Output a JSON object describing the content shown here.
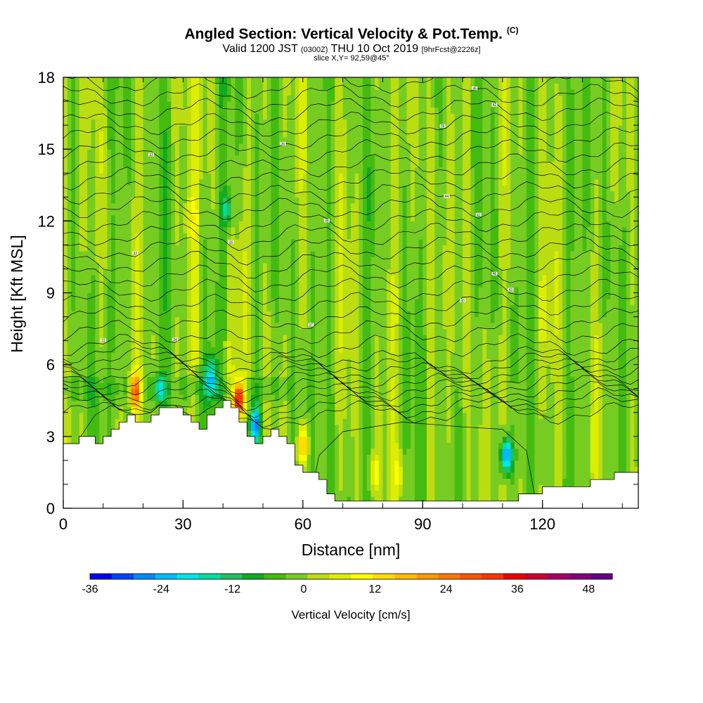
{
  "chart_data": {
    "type": "heatmap",
    "title": "Angled Section: Vertical Velocity & Pot.Temp.",
    "title_mark": "(C)",
    "subtitle_prefix": "Valid 1200 JST",
    "subtitle_utc": "(0300Z)",
    "subtitle_date": "THU 10 Oct 2019",
    "subtitle_run": "[9hrFcst@2226z]",
    "slice_label": "slice X,Y= 92,59@45°",
    "xlabel": "Distance [nm]",
    "ylabel": "Height [Kft MSL]",
    "xlim": [
      0,
      144
    ],
    "ylim": [
      0,
      18
    ],
    "x_ticks": [
      0,
      30,
      60,
      90,
      120
    ],
    "y_ticks": [
      0,
      3,
      6,
      9,
      12,
      15,
      18
    ],
    "colorbar": {
      "label": "Vertical Velocity [cm/s]",
      "min": -36,
      "max": 52,
      "step": 4,
      "tick_values": [
        -36,
        -24,
        -12,
        0,
        12,
        24,
        36,
        48
      ],
      "colors": [
        "#0000ff",
        "#0044ff",
        "#0088ff",
        "#00bbff",
        "#00e6e6",
        "#00dda0",
        "#22c060",
        "#11aa22",
        "#44bb11",
        "#77cc22",
        "#bbdd11",
        "#ddee00",
        "#ffff00",
        "#ffdd00",
        "#ffbb00",
        "#ff9900",
        "#ff7700",
        "#ff5500",
        "#ff3300",
        "#ee0000",
        "#cc0033",
        "#aa0066",
        "#880077",
        "#660088"
      ]
    },
    "terrain_top_kft": [
      [
        0,
        2.7
      ],
      [
        5,
        3.0
      ],
      [
        8,
        2.6
      ],
      [
        12,
        3.2
      ],
      [
        14,
        3.6
      ],
      [
        16,
        4.0
      ],
      [
        18,
        3.6
      ],
      [
        20,
        3.5
      ],
      [
        22,
        4.0
      ],
      [
        24,
        4.3
      ],
      [
        28,
        4.3
      ],
      [
        31,
        3.9
      ],
      [
        34,
        3.4
      ],
      [
        37,
        4.1
      ],
      [
        40,
        4.6
      ],
      [
        42,
        4.1
      ],
      [
        44,
        3.6
      ],
      [
        46,
        3.0
      ],
      [
        48,
        2.8
      ],
      [
        50,
        2.9
      ],
      [
        52,
        3.3
      ],
      [
        55,
        3.0
      ],
      [
        58,
        1.7
      ],
      [
        63,
        1.3
      ],
      [
        65,
        0.8
      ],
      [
        67,
        0.4
      ],
      [
        80,
        0.35
      ],
      [
        100,
        0.35
      ],
      [
        113,
        0.35
      ],
      [
        116,
        0.7
      ],
      [
        128,
        0.9
      ],
      [
        138,
        1.4
      ],
      [
        144,
        1.4
      ]
    ],
    "vertical_velocity_features": [
      {
        "x": 18,
        "y": 4.9,
        "value": 36
      },
      {
        "x": 44,
        "y": 4.6,
        "value": 44
      },
      {
        "x": 48,
        "y": 3.5,
        "value": -26
      },
      {
        "x": 37,
        "y": 5.5,
        "value": -20
      },
      {
        "x": 111,
        "y": 2.2,
        "value": -30
      },
      {
        "x": 60,
        "y": 2.6,
        "value": 20
      },
      {
        "x": 78,
        "y": 1.5,
        "value": 12
      },
      {
        "x": 84,
        "y": 1.5,
        "value": 10
      },
      {
        "x": 24,
        "y": 5.0,
        "value": -14
      },
      {
        "x": 32,
        "y": 12.0,
        "value": 8
      },
      {
        "x": 41,
        "y": 12.5,
        "value": -12
      }
    ],
    "isentropes": {
      "count": 30,
      "labels": [
        "31",
        "32",
        "33",
        "34",
        "35",
        "36",
        "37",
        "38",
        "39",
        "40",
        "41",
        "42",
        "43",
        "44",
        "45",
        "46",
        "47",
        "48",
        "49",
        "50"
      ]
    }
  }
}
